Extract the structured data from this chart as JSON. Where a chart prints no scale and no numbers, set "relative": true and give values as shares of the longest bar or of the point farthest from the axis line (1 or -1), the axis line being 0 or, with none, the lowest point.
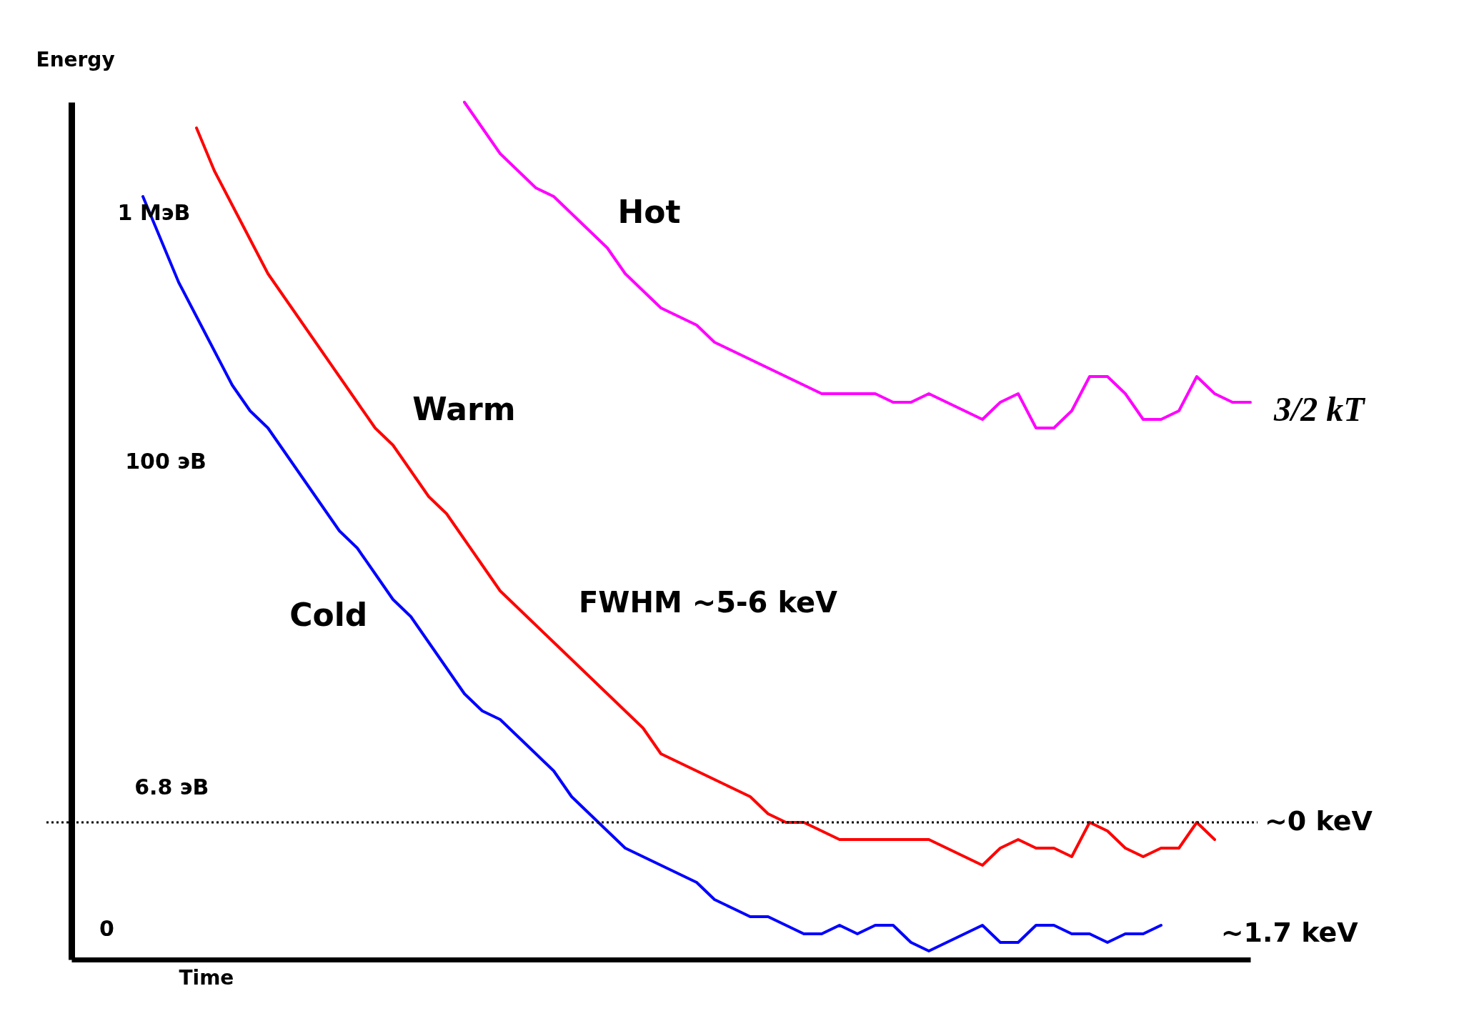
{
  "chart_data": {
    "type": "line",
    "xlabel": "Time",
    "ylabel": "Energy",
    "categories": [
      null,
      null,
      null,
      null,
      null,
      null,
      null,
      null,
      null,
      null,
      null,
      null,
      null,
      null,
      null,
      null,
      null,
      null,
      null,
      null,
      null,
      null,
      null,
      null,
      null,
      null,
      null,
      null,
      null,
      null,
      null,
      null,
      null,
      null,
      null,
      null,
      null,
      null,
      null,
      null,
      null,
      null,
      null,
      null,
      null,
      null,
      null,
      null,
      null,
      null,
      null,
      null,
      null,
      null,
      null,
      null,
      null,
      null,
      null,
      null,
      null,
      null,
      null,
      null,
      null,
      null,
      null
    ],
    "relative": true,
    "tick_labels": false,
    "grid": false,
    "legend": false,
    "marker": "none",
    "line_style": "solid",
    "series": [
      {
        "name": "Hot",
        "color": "#ff00ff",
        "values": [
          null,
          null,
          null,
          null,
          null,
          null,
          null,
          null,
          null,
          null,
          null,
          null,
          null,
          null,
          null,
          null,
          null,
          null,
          null,
          null,
          null,
          null,
          1.0,
          0.97,
          0.94,
          0.92,
          0.9,
          0.89,
          0.87,
          0.85,
          0.83,
          0.8,
          0.78,
          0.76,
          0.75,
          0.74,
          0.72,
          0.71,
          0.7,
          0.69,
          0.68,
          0.67,
          0.66,
          0.66,
          0.66,
          0.66,
          0.65,
          0.65,
          0.66,
          0.65,
          0.64,
          0.63,
          0.65,
          0.66,
          0.62,
          0.62,
          0.64,
          0.68,
          0.68,
          0.66,
          0.63,
          0.63,
          0.64,
          0.68,
          0.66,
          0.65,
          0.65
        ]
      },
      {
        "name": "Warm",
        "color": "#ff0000",
        "values": [
          null,
          null,
          null,
          null,
          null,
          null,
          null,
          0.97,
          0.92,
          0.88,
          0.84,
          0.8,
          0.77,
          0.74,
          0.71,
          0.68,
          0.65,
          0.62,
          0.6,
          0.57,
          0.54,
          0.52,
          0.49,
          0.46,
          0.43,
          0.41,
          0.39,
          0.37,
          0.35,
          0.33,
          0.31,
          0.29,
          0.27,
          0.24,
          0.23,
          0.22,
          0.21,
          0.2,
          0.19,
          0.17,
          0.16,
          0.16,
          0.15,
          0.14,
          0.14,
          0.14,
          0.14,
          0.14,
          0.14,
          0.13,
          0.12,
          0.11,
          0.13,
          0.14,
          0.13,
          0.13,
          0.12,
          0.16,
          0.15,
          0.13,
          0.12,
          0.13,
          0.13,
          0.16,
          0.14,
          null,
          null
        ]
      },
      {
        "name": "Cold",
        "color": "#0000ff",
        "values": [
          null,
          null,
          null,
          null,
          0.89,
          0.84,
          0.79,
          0.75,
          0.71,
          0.67,
          0.64,
          0.62,
          0.59,
          0.56,
          0.53,
          0.5,
          0.48,
          0.45,
          0.42,
          0.4,
          0.37,
          0.34,
          0.31,
          0.29,
          0.28,
          0.26,
          0.24,
          0.22,
          0.19,
          0.17,
          0.15,
          0.13,
          0.12,
          0.11,
          0.1,
          0.09,
          0.07,
          0.06,
          0.05,
          0.05,
          0.04,
          0.03,
          0.03,
          0.04,
          0.03,
          0.04,
          0.04,
          0.02,
          0.01,
          0.02,
          0.03,
          0.04,
          0.02,
          0.02,
          0.04,
          0.04,
          0.03,
          0.03,
          0.02,
          0.03,
          0.03,
          0.04,
          null,
          null,
          null,
          null,
          null
        ]
      }
    ],
    "ref_lines": [
      {
        "axis": "y",
        "value": 0.16,
        "label": "~0 keV",
        "color": "#000000",
        "line_style": "dotted"
      }
    ],
    "annotations": [
      "1 МэВ",
      "100 эВ",
      "6.8 эВ",
      "0",
      "FWHM ~5-6 keV",
      "3/2 kT",
      "~1.7 keV"
    ]
  }
}
